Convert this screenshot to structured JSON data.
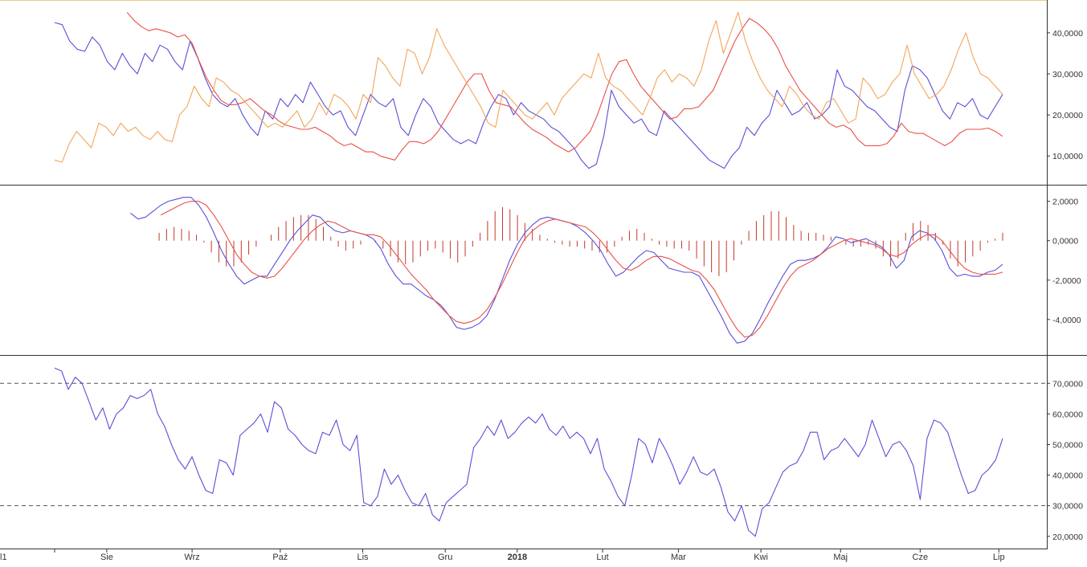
{
  "colors": {
    "blue": "#5b4fd6",
    "red": "#e8504a",
    "orange": "#f2a55a",
    "hist": "#c0392b",
    "axis": "#333333",
    "dash": "#555555",
    "top_border": "#f3c98c"
  },
  "chart_data": [
    {
      "type": "line",
      "name": "dmi-panel",
      "ylim": [
        3000,
        48000
      ],
      "yticks": [
        10000,
        20000,
        30000,
        40000
      ],
      "ytick_labels": [
        "10,0000",
        "20,0000",
        "30,0000",
        "40,0000"
      ],
      "grid": false,
      "series": [
        {
          "color": "blue",
          "values": [
            42500,
            42000,
            38000,
            36000,
            35500,
            39000,
            37000,
            33000,
            31000,
            35000,
            32000,
            30000,
            35000,
            33000,
            37000,
            36000,
            33000,
            31000,
            38000,
            34000,
            29000,
            25000,
            23000,
            22000,
            24000,
            20000,
            17000,
            15000,
            21000,
            19000,
            24000,
            22000,
            25000,
            23000,
            28000,
            25000,
            22000,
            20000,
            21000,
            17000,
            15000,
            20000,
            25000,
            23000,
            22000,
            24000,
            17000,
            15000,
            20000,
            24000,
            22000,
            18000,
            16000,
            14000,
            13000,
            14000,
            13000,
            18000,
            22000,
            25000,
            24000,
            20000,
            23000,
            21000,
            20000,
            19000,
            17000,
            16000,
            14000,
            12000,
            9000,
            7000,
            8000,
            15000,
            26000,
            22000,
            20000,
            18000,
            19000,
            16000,
            15000,
            21000,
            19000,
            17000,
            15000,
            13000,
            11000,
            9000,
            8000,
            7000,
            10000,
            12000,
            17000,
            15000,
            18000,
            20000,
            26000,
            23000,
            20000,
            21000,
            23000,
            19000,
            20000,
            22000,
            31000,
            27000,
            26000,
            24000,
            22000,
            21000,
            19000,
            17000,
            16000,
            26000,
            32000,
            31000,
            29000,
            25000,
            21000,
            19000,
            23000,
            22000,
            24000,
            20000,
            19000,
            22000,
            25000
          ]
        },
        {
          "color": "red",
          "values": [
            null,
            null,
            null,
            null,
            null,
            null,
            null,
            null,
            null,
            null,
            45000,
            43000,
            41500,
            40500,
            41000,
            40500,
            40000,
            39000,
            39500,
            37500,
            33000,
            29000,
            26000,
            23500,
            22500,
            22500,
            23000,
            24000,
            22500,
            21000,
            20000,
            18500,
            17500,
            17000,
            16500,
            16500,
            17000,
            16000,
            15000,
            13500,
            12500,
            13000,
            12000,
            11000,
            11000,
            10000,
            9500,
            9000,
            11500,
            13500,
            13500,
            13000,
            14000,
            16000,
            19000,
            22000,
            25000,
            28000,
            30000,
            30000,
            26000,
            23000,
            22500,
            22000,
            20000,
            18000,
            16500,
            15500,
            14500,
            13000,
            12000,
            11000,
            12000,
            14000,
            16000,
            20000,
            25000,
            30000,
            33000,
            33500,
            30000,
            27000,
            25000,
            23000,
            21000,
            19000,
            19500,
            21500,
            21500,
            22000,
            24000,
            26000,
            30000,
            34000,
            38000,
            41000,
            43500,
            42500,
            41000,
            39000,
            36000,
            32000,
            29000,
            26000,
            24000,
            22000,
            20000,
            18000,
            17000,
            17500,
            16500,
            14000,
            12500,
            12500,
            12500,
            13000,
            15000,
            18000,
            16000,
            15500,
            15500,
            14500,
            13500,
            12500,
            13500,
            15500,
            16500,
            16500,
            16500,
            16800,
            16000,
            14800
          ]
        },
        {
          "color": "orange",
          "values": [
            9000,
            8500,
            13000,
            16000,
            14000,
            12000,
            18000,
            17000,
            15000,
            18000,
            16000,
            17000,
            15000,
            14000,
            16000,
            14000,
            13500,
            20000,
            22000,
            27000,
            24000,
            22000,
            29000,
            28000,
            26000,
            25000,
            23000,
            21000,
            19000,
            17000,
            18000,
            17000,
            19000,
            21000,
            17000,
            19000,
            23000,
            20000,
            25000,
            24000,
            22000,
            19000,
            25000,
            23000,
            34000,
            32000,
            29000,
            27000,
            36000,
            35000,
            30000,
            34000,
            41000,
            37000,
            34000,
            31000,
            28000,
            25000,
            22000,
            18000,
            17000,
            26000,
            24000,
            22000,
            20000,
            19000,
            21000,
            23000,
            20000,
            24000,
            26000,
            28000,
            30000,
            29000,
            35000,
            29000,
            27000,
            26000,
            24000,
            22000,
            20000,
            24000,
            29000,
            31000,
            28000,
            30000,
            29000,
            27000,
            31000,
            38000,
            43000,
            35000,
            40000,
            45000,
            38000,
            33000,
            29000,
            26000,
            24000,
            22000,
            27000,
            25000,
            22000,
            20000,
            19000,
            23000,
            24000,
            21000,
            18000,
            19000,
            29000,
            27000,
            24000,
            25000,
            28000,
            30000,
            37000,
            30000,
            27000,
            24000,
            25000,
            27000,
            31000,
            36000,
            40000,
            34000,
            30000,
            29000,
            27000,
            25000
          ]
        }
      ]
    },
    {
      "type": "line",
      "name": "macd-panel",
      "ylim": [
        -5800,
        2800
      ],
      "yticks": [
        -4000,
        -2000,
        0,
        2000
      ],
      "ytick_labels": [
        "-4,0000",
        "-2,0000",
        "0,0000",
        "2,0000"
      ],
      "grid": false,
      "series": [
        {
          "color": "blue",
          "values": [
            null,
            null,
            null,
            null,
            null,
            null,
            null,
            null,
            null,
            null,
            1400,
            1100,
            1200,
            1500,
            1800,
            2000,
            2100,
            2200,
            2200,
            1800,
            1200,
            400,
            -500,
            -1200,
            -1800,
            -2200,
            -2000,
            -1800,
            -1800,
            -1200,
            -600,
            0,
            500,
            900,
            1300,
            1200,
            800,
            500,
            400,
            500,
            400,
            300,
            100,
            -400,
            -1200,
            -1800,
            -2200,
            -2200,
            -2500,
            -2800,
            -3000,
            -3300,
            -3800,
            -4400,
            -4500,
            -4400,
            -4200,
            -3800,
            -3000,
            -2000,
            -1000,
            -200,
            400,
            800,
            1100,
            1200,
            1100,
            1000,
            900,
            700,
            400,
            0,
            -500,
            -1200,
            -1800,
            -1600,
            -1200,
            -800,
            -500,
            -600,
            -1000,
            -1400,
            -1500,
            -1600,
            -1600,
            -1800,
            -2500,
            -3200,
            -3900,
            -4700,
            -5200,
            -5100,
            -4700,
            -4000,
            -3200,
            -2500,
            -1800,
            -1200,
            -1000,
            -1000,
            -900,
            -700,
            -300,
            200,
            100,
            -100,
            0,
            100,
            -100,
            -300,
            -700,
            -1400,
            -1000,
            200,
            500,
            400,
            100,
            -500,
            -1400,
            -1800,
            -1700,
            -1800,
            -1800,
            -1600,
            -1500,
            -1200
          ]
        },
        {
          "color": "red",
          "values": [
            null,
            null,
            null,
            null,
            null,
            null,
            null,
            null,
            null,
            null,
            null,
            null,
            null,
            null,
            1300,
            1500,
            1700,
            1900,
            2000,
            2000,
            1800,
            1300,
            700,
            0,
            -700,
            -1200,
            -1600,
            -1800,
            -1900,
            -1800,
            -1400,
            -900,
            -400,
            100,
            500,
            800,
            1000,
            900,
            700,
            500,
            400,
            300,
            300,
            200,
            -200,
            -700,
            -1200,
            -1700,
            -2100,
            -2500,
            -3000,
            -3400,
            -3800,
            -4100,
            -4200,
            -4100,
            -3900,
            -3500,
            -2900,
            -2200,
            -1400,
            -600,
            100,
            500,
            800,
            1000,
            1100,
            1000,
            900,
            800,
            700,
            400,
            0,
            -500,
            -1000,
            -1400,
            -1500,
            -1300,
            -1000,
            -800,
            -800,
            -900,
            -1100,
            -1300,
            -1500,
            -1600,
            -2000,
            -2500,
            -3200,
            -3900,
            -4500,
            -4900,
            -4800,
            -4400,
            -3800,
            -3100,
            -2400,
            -1800,
            -1400,
            -1200,
            -1000,
            -700,
            -400,
            -200,
            0,
            100,
            0,
            -100,
            -200,
            -400,
            -700,
            -800,
            -600,
            -200,
            100,
            300,
            300,
            0,
            -500,
            -1000,
            -1400,
            -1600,
            -1700,
            -1700,
            -1700,
            -1600
          ]
        }
      ],
      "histogram": {
        "color": "hist",
        "values": [
          null,
          null,
          null,
          null,
          null,
          null,
          null,
          null,
          null,
          null,
          null,
          null,
          null,
          null,
          400,
          600,
          700,
          600,
          500,
          300,
          -100,
          -600,
          -1100,
          -1300,
          -1300,
          -1100,
          -700,
          -300,
          0,
          300,
          700,
          1000,
          1200,
          1300,
          1300,
          1100,
          700,
          200,
          -300,
          -500,
          -400,
          -200,
          0,
          -100,
          -400,
          -800,
          -1100,
          -1200,
          -1100,
          -800,
          -500,
          -400,
          -600,
          -900,
          -1100,
          -800,
          -300,
          400,
          1000,
          1500,
          1700,
          1600,
          1300,
          900,
          600,
          300,
          100,
          -100,
          -200,
          -300,
          -300,
          -400,
          -500,
          -600,
          -600,
          -300,
          200,
          500,
          600,
          400,
          100,
          -200,
          -300,
          -400,
          -400,
          -500,
          -900,
          -1300,
          -1600,
          -1800,
          -1600,
          -1000,
          -200,
          500,
          1000,
          1300,
          1500,
          1500,
          1200,
          800,
          500,
          400,
          400,
          300,
          200,
          0,
          -200,
          -300,
          -300,
          -200,
          -400,
          -800,
          -1300,
          -900,
          400,
          900,
          1000,
          800,
          400,
          -200,
          -900,
          -1300,
          -1100,
          -800,
          -500,
          -100,
          100,
          400
        ]
      }
    },
    {
      "type": "line",
      "name": "rsi-panel",
      "ylim": [
        16000,
        79000
      ],
      "yticks": [
        20000,
        30000,
        40000,
        50000,
        60000,
        70000
      ],
      "ytick_labels": [
        "20,0000",
        "30,0000",
        "40,0000",
        "50,0000",
        "60,0000",
        "70,0000"
      ],
      "reference_lines": [
        70000,
        30000
      ],
      "grid": false,
      "series": [
        {
          "color": "blue",
          "values": [
            75000,
            74000,
            68000,
            72000,
            70000,
            64000,
            58000,
            62000,
            55000,
            60000,
            62000,
            66000,
            65000,
            66000,
            68000,
            60000,
            56000,
            50000,
            45000,
            42000,
            46000,
            40000,
            35000,
            34000,
            45000,
            44000,
            40000,
            53000,
            55000,
            57000,
            60000,
            54000,
            64000,
            62000,
            55000,
            53000,
            50000,
            48000,
            47000,
            54000,
            53000,
            58000,
            50000,
            48000,
            53000,
            31000,
            30000,
            33000,
            42000,
            37000,
            40000,
            35000,
            31000,
            30000,
            34000,
            27000,
            25000,
            31000,
            33000,
            35000,
            37000,
            49000,
            52000,
            56000,
            53000,
            58000,
            52000,
            54000,
            57000,
            59000,
            57000,
            60000,
            55000,
            53000,
            56000,
            52000,
            54000,
            52000,
            47000,
            52000,
            42000,
            38000,
            33000,
            30000,
            40000,
            52000,
            50000,
            44000,
            52000,
            48000,
            43000,
            37000,
            41000,
            46000,
            41000,
            40000,
            42000,
            36000,
            28000,
            25000,
            30000,
            22000,
            20000,
            29000,
            31000,
            36000,
            41000,
            43000,
            44000,
            48000,
            54000,
            54000,
            45000,
            48000,
            49000,
            52000,
            49000,
            46000,
            50000,
            58000,
            52000,
            46000,
            50000,
            51000,
            48000,
            43000,
            32000,
            52000,
            58000,
            57000,
            54000,
            47000,
            40000,
            34000,
            35000,
            40000,
            42000,
            45000,
            52000
          ]
        }
      ]
    }
  ],
  "x_axis": {
    "labels": [
      {
        "text": "l1",
        "pos": 0.0,
        "bold": false
      },
      {
        "text": "Sie",
        "pos": 0.055,
        "bold": false
      },
      {
        "text": "Wrz",
        "pos": 0.145,
        "bold": false
      },
      {
        "text": "Paź",
        "pos": 0.238,
        "bold": false
      },
      {
        "text": "Lis",
        "pos": 0.325,
        "bold": false
      },
      {
        "text": "Gru",
        "pos": 0.412,
        "bold": false
      },
      {
        "text": "2018",
        "pos": 0.488,
        "bold": true
      },
      {
        "text": "Lut",
        "pos": 0.578,
        "bold": false
      },
      {
        "text": "Mar",
        "pos": 0.658,
        "bold": false
      },
      {
        "text": "Kwi",
        "pos": 0.745,
        "bold": false
      },
      {
        "text": "Maj",
        "pos": 0.829,
        "bold": false
      },
      {
        "text": "Cze",
        "pos": 0.913,
        "bold": false
      },
      {
        "text": "Lip",
        "pos": 0.996,
        "bold": false
      }
    ]
  }
}
